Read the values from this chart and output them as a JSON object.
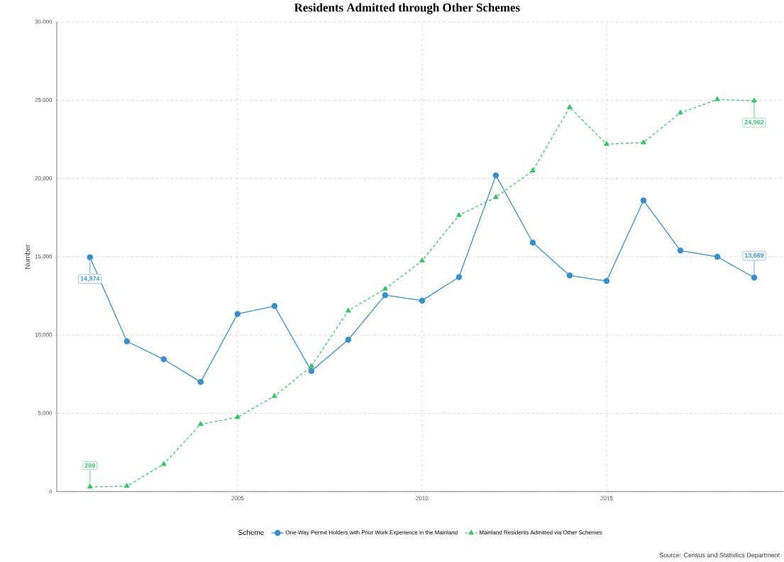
{
  "chart_data": {
    "type": "line",
    "title": "Residents Admitted through Other Schemes",
    "ylabel": "Number",
    "legend_title": "Scheme",
    "legend": "bottom",
    "grid": true,
    "x": [
      2001,
      2002,
      2003,
      2004,
      2005,
      2006,
      2007,
      2008,
      2009,
      2010,
      2011,
      2012,
      2013,
      2014,
      2015,
      2016,
      2017,
      2018,
      2019
    ],
    "xlim": [
      2000.1,
      2019.8
    ],
    "xticks": [
      2005,
      2010,
      2015
    ],
    "ylim": [
      0,
      30000
    ],
    "yticks": [
      0,
      {
        "value": 5000,
        "label": "5,000"
      },
      {
        "value": 10000,
        "label": "10,000"
      },
      {
        "value": 15000,
        "label": "15,000"
      },
      {
        "value": 20000,
        "label": "20,000"
      },
      {
        "value": 25000,
        "label": "25,000"
      },
      {
        "value": 30000,
        "label": "30,000"
      }
    ],
    "series": [
      {
        "name": "One-Way Permit Holders with Prior Work Experience in the Mainland",
        "color": "#3a8fc7",
        "marker": "circle",
        "line_style": "solid",
        "values": [
          14974,
          9600,
          8450,
          7000,
          11350,
          11850,
          7700,
          9700,
          12550,
          12200,
          13700,
          20200,
          15900,
          13800,
          13450,
          18600,
          15400,
          15000,
          13669
        ],
        "value_labels": [
          "14,974",
          null,
          null,
          null,
          null,
          null,
          null,
          null,
          null,
          null,
          null,
          null,
          null,
          null,
          null,
          null,
          null,
          null,
          "13,669"
        ]
      },
      {
        "name": "Mainland Residents Admitted via Other Schemes",
        "color": "#3cc16c",
        "marker": "triangle",
        "line_style": "dashed",
        "values": [
          299,
          350,
          1750,
          4300,
          4750,
          6100,
          8000,
          11550,
          12950,
          14750,
          17650,
          18800,
          20500,
          24550,
          22200,
          22300,
          24200,
          25050,
          24962
        ],
        "value_labels": [
          "299",
          null,
          null,
          null,
          null,
          null,
          null,
          null,
          null,
          null,
          null,
          null,
          null,
          null,
          null,
          null,
          null,
          null,
          "24,962"
        ]
      }
    ],
    "annotations": [
      "Source: Census and Statistics Department"
    ]
  }
}
